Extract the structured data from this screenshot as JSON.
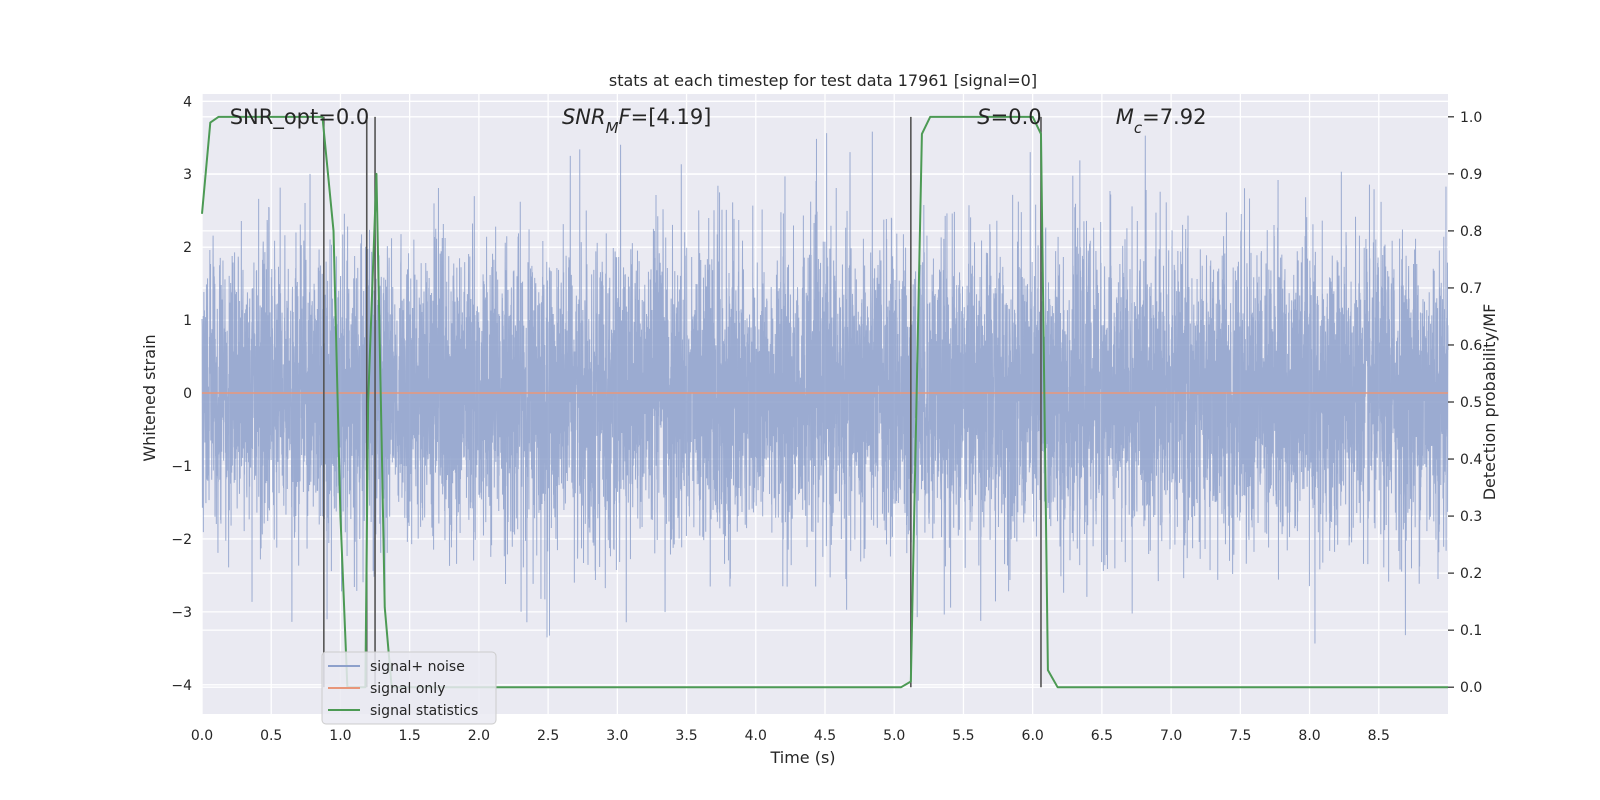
{
  "chart_data": {
    "type": "line",
    "title": "stats at each timestep for test data 17961 [signal=0]",
    "xlabel": "Time (s)",
    "ylabel": "Whitened strain",
    "y2label": "Detection probability/MF",
    "xlim": [
      0,
      9.0
    ],
    "ylim": [
      -4.4,
      4.1
    ],
    "y2lim": [
      -0.047,
      1.04
    ],
    "xticks": [
      0.0,
      0.5,
      1.0,
      1.5,
      2.0,
      2.5,
      3.0,
      3.5,
      4.0,
      4.5,
      5.0,
      5.5,
      6.0,
      6.5,
      7.0,
      7.5,
      8.0,
      8.5
    ],
    "xtick_labels": [
      "0.0",
      "0.5",
      "1.0",
      "1.5",
      "2.0",
      "2.5",
      "3.0",
      "3.5",
      "4.0",
      "4.5",
      "5.0",
      "5.5",
      "6.0",
      "6.5",
      "7.0",
      "7.5",
      "8.0",
      "8.5"
    ],
    "yticks": [
      -4,
      -3,
      -2,
      -1,
      0,
      1,
      2,
      3,
      4
    ],
    "ytick_labels": [
      "−4",
      "−3",
      "−2",
      "−1",
      "0",
      "1",
      "2",
      "3",
      "4"
    ],
    "y2ticks": [
      0.0,
      0.1,
      0.2,
      0.3,
      0.4,
      0.5,
      0.6,
      0.7,
      0.8,
      0.9,
      1.0
    ],
    "y2tick_labels": [
      "0.0",
      "0.1",
      "0.2",
      "0.3",
      "0.4",
      "0.5",
      "0.6",
      "0.7",
      "0.8",
      "0.9",
      "1.0"
    ],
    "grid": true,
    "legend_position": "lower-left",
    "annotations": [
      {
        "parts": [
          {
            "t": "SNR_opt=0.0"
          }
        ],
        "x": 0.2
      },
      {
        "parts": [
          {
            "t": "SNR",
            "i": true
          },
          {
            "t": "M",
            "i": true,
            "sub": true
          },
          {
            "t": "F",
            "i": true
          },
          {
            "t": "=[4.19]"
          }
        ],
        "x": 2.6
      },
      {
        "parts": [
          {
            "t": "S",
            "i": true
          },
          {
            "t": "=0.0"
          }
        ],
        "x": 5.6
      },
      {
        "parts": [
          {
            "t": "M",
            "i": true
          },
          {
            "t": "c",
            "i": true,
            "sub": true
          },
          {
            "t": "=7.92"
          }
        ],
        "x": 6.6
      }
    ],
    "series": [
      {
        "name": "signal+ noise",
        "kind": "noise",
        "axis": "left",
        "color": "#8da0cb",
        "sample_rate_hz": 2048,
        "std": 1.0,
        "peak_range": [
          -3.6,
          3.7
        ]
      },
      {
        "name": "signal only",
        "kind": "flat",
        "axis": "left",
        "color": "#e8967a",
        "value": 0.0
      },
      {
        "name": "signal statistics",
        "kind": "line",
        "axis": "right",
        "color": "#4c9a54",
        "x": [
          0.0,
          0.06,
          0.12,
          0.2,
          0.87,
          0.95,
          1.0,
          1.05,
          1.13,
          1.18,
          1.2,
          1.26,
          1.3,
          1.32,
          1.37,
          5.05,
          5.12,
          5.2,
          5.26,
          6.0,
          6.06,
          6.11,
          6.18,
          9.0
        ],
        "y": [
          0.83,
          0.99,
          1.0,
          1.0,
          1.0,
          0.8,
          0.3,
          0.0,
          0.0,
          0.0,
          0.5,
          0.9,
          0.4,
          0.14,
          0.0,
          0.0,
          0.01,
          0.97,
          1.0,
          1.0,
          0.97,
          0.03,
          0.0,
          0.0
        ]
      }
    ],
    "vlines": [
      {
        "x": 0.88,
        "y2": [
          0.0,
          1.0
        ]
      },
      {
        "x": 1.19,
        "y2": [
          0.0,
          1.0
        ]
      },
      {
        "x": 1.25,
        "y2": [
          0.0,
          1.0
        ]
      },
      {
        "x": 5.12,
        "y2": [
          0.0,
          1.0
        ]
      },
      {
        "x": 6.06,
        "y2": [
          0.0,
          1.0
        ]
      }
    ]
  },
  "colors": {
    "axes_background": "#eaeaf2",
    "grid": "#ffffff",
    "text": "#262626",
    "vline": "#555555"
  }
}
